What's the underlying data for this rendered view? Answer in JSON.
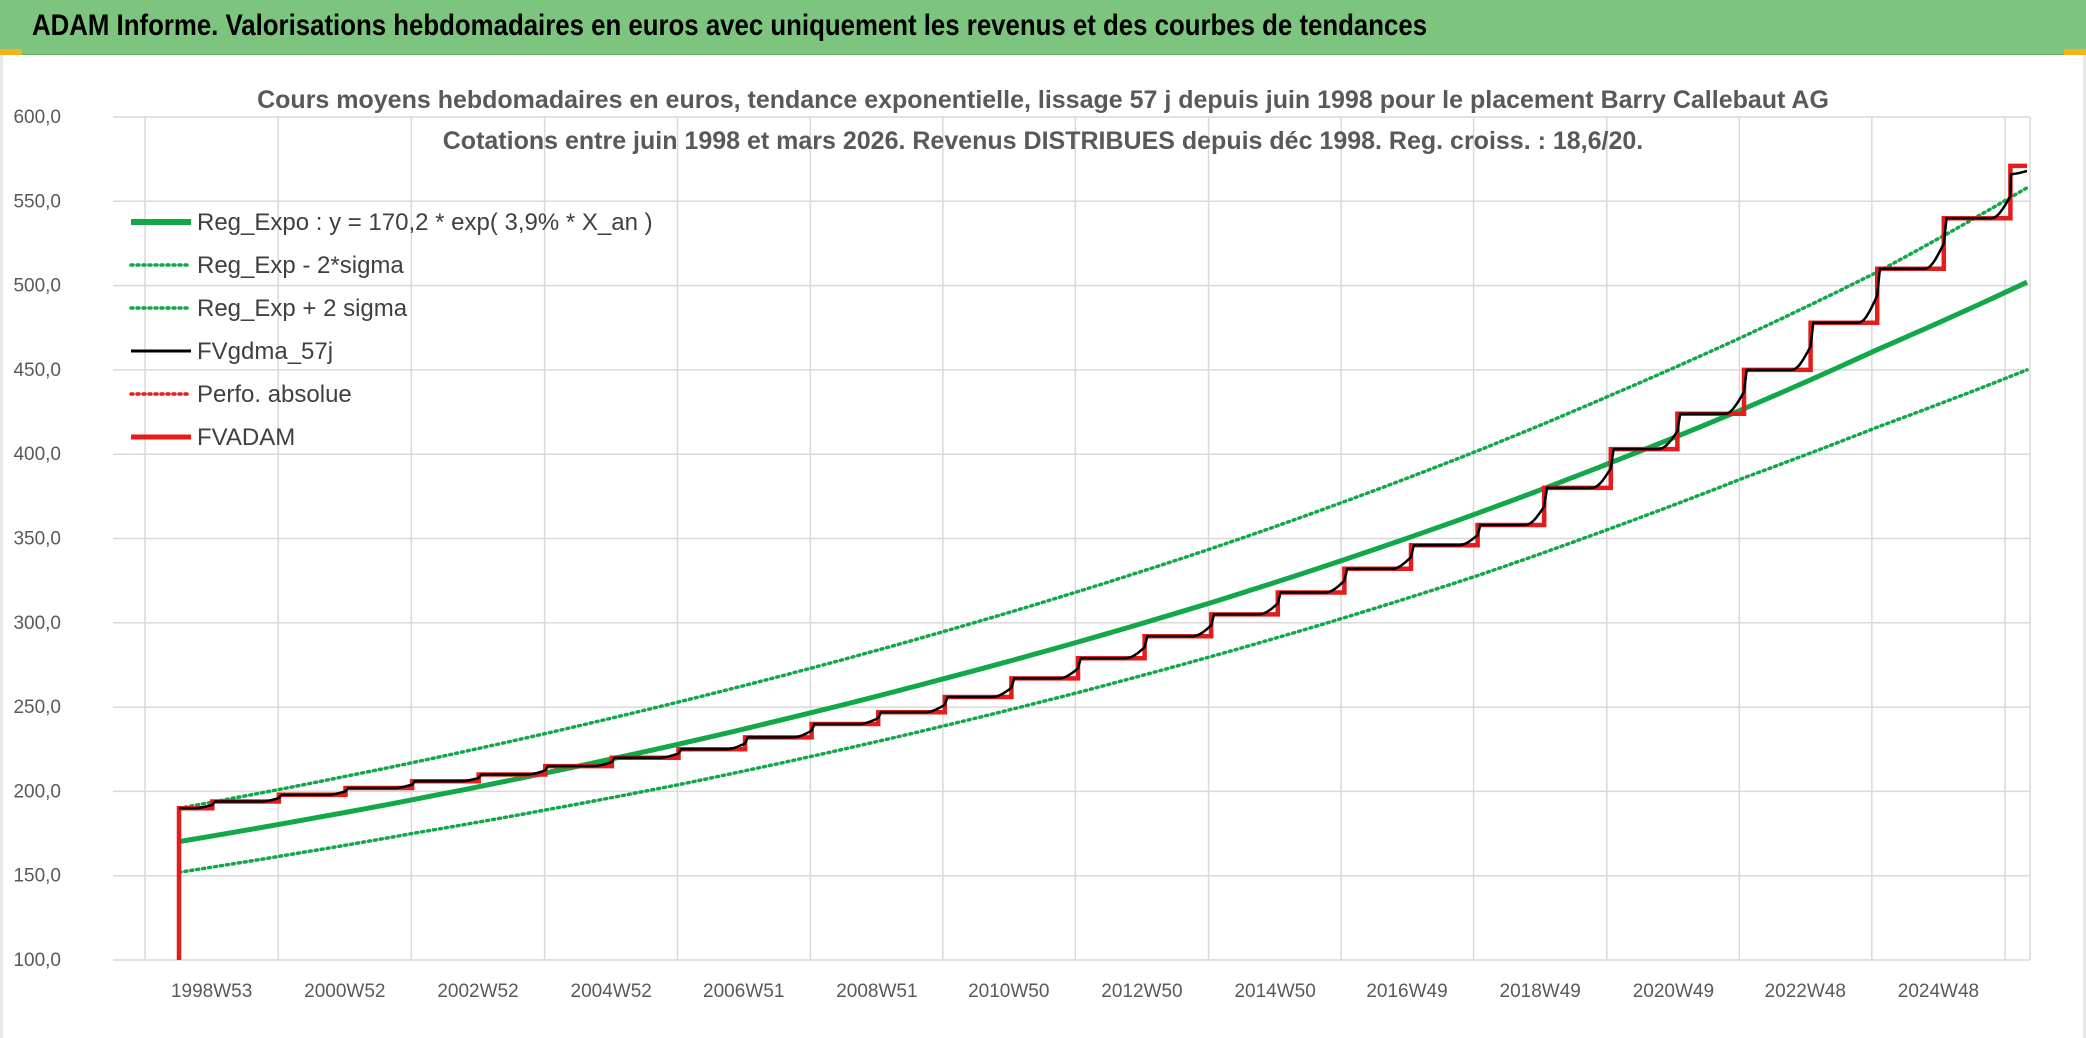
{
  "header": {
    "title": "ADAM Informe. Valorisations hebdomadaires en euros avec uniquement les revenus et des courbes de tendances"
  },
  "colors": {
    "header_bg": "#7dc57f",
    "green": "#12a84a",
    "red": "#e51c1c",
    "black": "#000000"
  },
  "chart_data": {
    "type": "line",
    "title": "Cours moyens hebdomadaires en euros, tendance exponentielle, lissage 57 j depuis juin 1998 pour le placement Barry Callebaut AG",
    "subtitle": "Cotations entre juin 1998 et mars 2026. Revenus DISTRIBUES depuis déc 1998. Reg. croiss. : 18,6/20.",
    "xlabel": "",
    "ylabel": "",
    "ylim": [
      100,
      600
    ],
    "y_ticks": [
      "100,0",
      "150,0",
      "200,0",
      "250,0",
      "300,0",
      "350,0",
      "400,0",
      "450,0",
      "500,0",
      "550,0",
      "600,0"
    ],
    "x_ticks": [
      "1998W53",
      "2000W52",
      "2002W52",
      "2004W52",
      "2006W51",
      "2008W51",
      "2010W50",
      "2012W50",
      "2014W50",
      "2016W49",
      "2018W49",
      "2020W49",
      "2022W48",
      "2024W48"
    ],
    "x_tick_years": [
      1998.99,
      2000.99,
      2002.99,
      2004.99,
      2006.98,
      2008.98,
      2010.96,
      2012.96,
      2014.96,
      2016.94,
      2018.94,
      2020.94,
      2022.92,
      2024.92
    ],
    "x_range": [
      1998.5,
      2026.25
    ],
    "grid": true,
    "legend_position": "top-left",
    "series": [
      {
        "name": "Reg_Expo : y = 170,2 * exp( 3,9% *  X_an )",
        "style": "solid-thick",
        "color": "#12a84a",
        "x": [
          1998.5,
          2002,
          2006,
          2010,
          2014,
          2018,
          2020,
          2022,
          2024,
          2026.25
        ],
        "y": [
          170.2,
          195,
          228,
          267,
          312,
          365,
          395,
          427,
          462,
          502
        ]
      },
      {
        "name": "Reg_Exp - 2*sigma",
        "style": "dotted",
        "color": "#12a84a",
        "x": [
          1998.5,
          2002,
          2006,
          2010,
          2014,
          2018,
          2020,
          2022,
          2024,
          2026.25
        ],
        "y": [
          152,
          175,
          204,
          239,
          280,
          328,
          356,
          386,
          416,
          450
        ]
      },
      {
        "name": "Reg_Exp + 2 sigma",
        "style": "dotted",
        "color": "#12a84a",
        "x": [
          1998.5,
          2002,
          2006,
          2010,
          2014,
          2018,
          2020,
          2022,
          2024,
          2026.25
        ],
        "y": [
          190,
          217,
          253,
          295,
          344,
          402,
          435,
          470,
          508,
          558
        ]
      },
      {
        "name": "FVgdma_57j",
        "style": "smooth-steps",
        "color": "#000000",
        "x": [
          1998.5,
          1999,
          2000,
          2001,
          2002,
          2003,
          2004,
          2005,
          2006,
          2007,
          2008,
          2009,
          2010,
          2011,
          2012,
          2013,
          2014,
          2015,
          2016,
          2017,
          2018,
          2019,
          2020,
          2021,
          2022,
          2023,
          2024,
          2025,
          2026,
          2026.25
        ],
        "y": [
          190,
          194,
          198,
          202,
          206,
          210,
          215,
          220,
          225,
          232,
          240,
          247,
          256,
          267,
          279,
          292,
          305,
          318,
          332,
          346,
          358,
          380,
          403,
          424,
          450,
          478,
          510,
          540,
          566,
          570
        ]
      },
      {
        "name": "Perfo. absolue",
        "style": "dotted",
        "color": "#e51c1c",
        "x": [],
        "y": []
      },
      {
        "name": "FVADAM",
        "style": "steps-thick",
        "color": "#e51c1c",
        "x": [
          1998.5,
          1998.5,
          1999,
          2000,
          2001,
          2002,
          2003,
          2004,
          2005,
          2006,
          2007,
          2008,
          2009,
          2010,
          2011,
          2012,
          2013,
          2014,
          2015,
          2016,
          2017,
          2018,
          2019,
          2020,
          2021,
          2022,
          2023,
          2024,
          2025,
          2026,
          2026.25
        ],
        "y": [
          100,
          190,
          194,
          198,
          202,
          206,
          210,
          215,
          220,
          225,
          232,
          240,
          247,
          256,
          267,
          279,
          292,
          305,
          318,
          332,
          346,
          358,
          380,
          403,
          424,
          450,
          478,
          510,
          540,
          571,
          571
        ]
      }
    ]
  }
}
